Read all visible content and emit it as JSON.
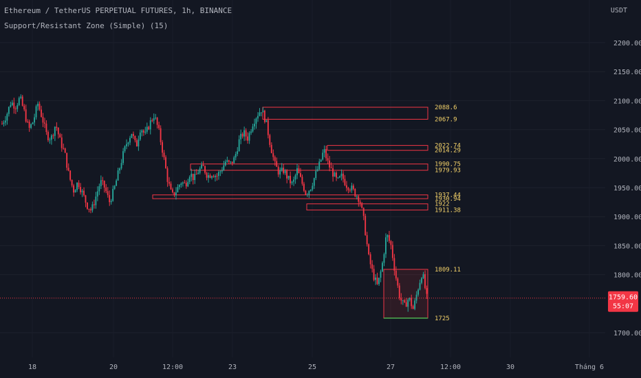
{
  "header": {
    "title": "Ethereum / TetherUS PERPETUAL FUTURES, 1h, BINANCE",
    "indicator": "Support/Resistant Zone (Simple) (15)"
  },
  "price_axis": {
    "currency": "USDT",
    "ticks": [
      "2200.00",
      "2150.00",
      "2100.00",
      "2050.00",
      "2000.00",
      "1950.00",
      "1900.00",
      "1850.00",
      "1800.00",
      "1700.00"
    ]
  },
  "current_price": {
    "value": "1759.60",
    "countdown": "55:07",
    "color": "#f23645"
  },
  "time_axis": {
    "ticks": [
      "18",
      "20",
      "12:00",
      "23",
      "25",
      "27",
      "12:00",
      "30",
      "Tháng 6"
    ]
  },
  "colors": {
    "up": "#26a69a",
    "down": "#f23645",
    "zone": "#f23645",
    "support": "#4caf50",
    "label": "#f5d36a"
  },
  "chart_data": {
    "type": "candlestick",
    "symbol": "ETHUSDT.P",
    "interval": "1h",
    "y_range": [
      1680,
      2240
    ],
    "zones": [
      {
        "top": "2088.6",
        "bottom": "2067.9"
      },
      {
        "top": "2022.74",
        "bottom": "2014.29"
      },
      {
        "top": "1990.75",
        "bottom": "1979.93"
      },
      {
        "top": "1937.44",
        "bottom": "1930.94"
      },
      {
        "top": "1922",
        "bottom": "1911.38"
      },
      {
        "top": "1809.11",
        "bottom": "1725"
      }
    ],
    "close_path": [
      2060,
      2075,
      2098,
      2090,
      2105,
      2080,
      2050,
      2065,
      2095,
      2070,
      2040,
      2035,
      2060,
      2030,
      2010,
      1970,
      1945,
      1960,
      1940,
      1920,
      1910,
      1935,
      1960,
      1950,
      1925,
      1945,
      1975,
      2005,
      2030,
      2045,
      2020,
      2055,
      2040,
      2060,
      2075,
      2050,
      2010,
      1965,
      1935,
      1945,
      1960,
      1955,
      1975,
      1965,
      1980,
      1985,
      1970,
      1975,
      1970,
      1980,
      1995,
      1990,
      2000,
      2030,
      2045,
      2035,
      2060,
      2075,
      2085,
      2065,
      2025,
      1990,
      1975,
      1980,
      1965,
      1955,
      1980,
      1960,
      1940,
      1950,
      1970,
      1990,
      2015,
      1990,
      1975,
      1960,
      1970,
      1955,
      1950,
      1940,
      1930,
      1890,
      1830,
      1800,
      1780,
      1815,
      1870,
      1850,
      1800,
      1760,
      1745,
      1760,
      1740,
      1775,
      1805,
      1760
    ]
  }
}
